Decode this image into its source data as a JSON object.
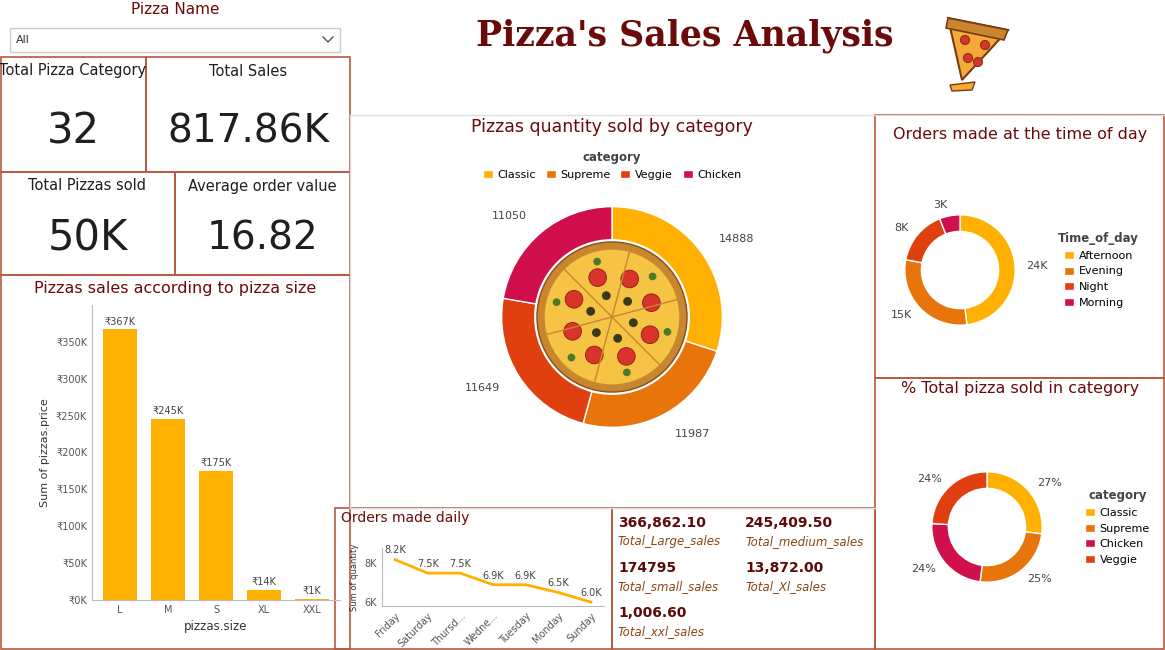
{
  "title": "Pizza's Sales Analysis",
  "slicer": {
    "label": "Pizza Name",
    "value": "All"
  },
  "kpi_cards": [
    {
      "label": "Total Pizza Category",
      "value": "32"
    },
    {
      "label": "Total Sales",
      "value": "817.86K"
    },
    {
      "label": "Total Pizzas sold",
      "value": "50K"
    },
    {
      "label": "Average order value",
      "value": "16.82"
    }
  ],
  "sales_card": [
    {
      "value": "366,862.10",
      "label": "Total_Large_sales"
    },
    {
      "value": "245,409.50",
      "label": "Total_medium_sales"
    },
    {
      "value": "174795",
      "label": "Total_small_sales"
    },
    {
      "value": "13,872.00",
      "label": "Total_Xl_sales"
    },
    {
      "value": "1,006.60",
      "label": "Total_xxl_sales"
    }
  ],
  "chart_data": [
    {
      "type": "bar",
      "title": "Pizzas sales according to pizza size",
      "x_label": "pizzas.size",
      "y_label": "Sum of pizzas.price",
      "categories": [
        "L",
        "M",
        "S",
        "XL",
        "XXL"
      ],
      "values": [
        366862.1,
        245409.5,
        174795,
        13872.0,
        1006.6
      ],
      "value_labels": [
        "₹367K",
        "₹245K",
        "₹175K",
        "₹14K",
        "₹1K"
      ],
      "color": "#FFB000",
      "ylim": [
        0,
        400000
      ],
      "yticks": [
        {
          "value": 0,
          "label": "₹0K"
        },
        {
          "value": 50000,
          "label": "₹50K"
        },
        {
          "value": 100000,
          "label": "₹100K"
        },
        {
          "value": 150000,
          "label": "₹150K"
        },
        {
          "value": 200000,
          "label": "₹200K"
        },
        {
          "value": 250000,
          "label": "₹250K"
        },
        {
          "value": 300000,
          "label": "₹300K"
        },
        {
          "value": 350000,
          "label": "₹350K"
        }
      ],
      "grid": false,
      "data_labels": true
    },
    {
      "type": "donut",
      "title": "Pizzas quantity sold by category",
      "legend_title": "category",
      "categories": [
        "Classic",
        "Supreme",
        "Veggie",
        "Chicken"
      ],
      "values": [
        14888,
        11987,
        11649,
        11050
      ],
      "colors": [
        "#FFB000",
        "#E8740C",
        "#E0400F",
        "#D0104C"
      ],
      "legend": "top",
      "data_labels": true
    },
    {
      "type": "donut",
      "title": "Orders made at the time of day",
      "legend_title": "Time_of_day",
      "categories": [
        "Afternoon",
        "Evening",
        "Night",
        "Morning"
      ],
      "values": [
        24000,
        15000,
        8000,
        3000
      ],
      "value_labels": [
        "24K",
        "15K",
        "8K",
        "3K"
      ],
      "colors": [
        "#FFB000",
        "#E8740C",
        "#E0400F",
        "#D0104C"
      ],
      "legend": "right",
      "data_labels": true
    },
    {
      "type": "donut",
      "title": "% Total pizza sold in category",
      "legend_title": "category",
      "categories": [
        "Classic",
        "Supreme",
        "Chicken",
        "Veggie"
      ],
      "values": [
        27,
        25,
        24,
        24
      ],
      "value_labels": [
        "27%",
        "25%",
        "24%",
        "24%"
      ],
      "colors": [
        "#FFB000",
        "#E8740C",
        "#D0104C",
        "#E0400F"
      ],
      "legend": "right",
      "data_labels": true
    },
    {
      "type": "line",
      "title": "Orders made daily",
      "y_label": "Sum of quantity",
      "categories": [
        "Friday",
        "Saturday",
        "Thursd...",
        "Wedne...",
        "Tuesday",
        "Monday",
        "Sunday"
      ],
      "values": [
        8200,
        7500,
        7500,
        6900,
        6900,
        6500,
        6000
      ],
      "value_labels": [
        "8.2K",
        "7.5K",
        "7.5K",
        "6.9K",
        "6.9K",
        "6.5K",
        "6.0K"
      ],
      "color": "#FFB000",
      "ylim": [
        5800,
        8800
      ],
      "yticks": [
        {
          "value": 6000,
          "label": "6K"
        },
        {
          "value": 8000,
          "label": "8K"
        }
      ],
      "grid": false,
      "data_labels": true
    }
  ]
}
